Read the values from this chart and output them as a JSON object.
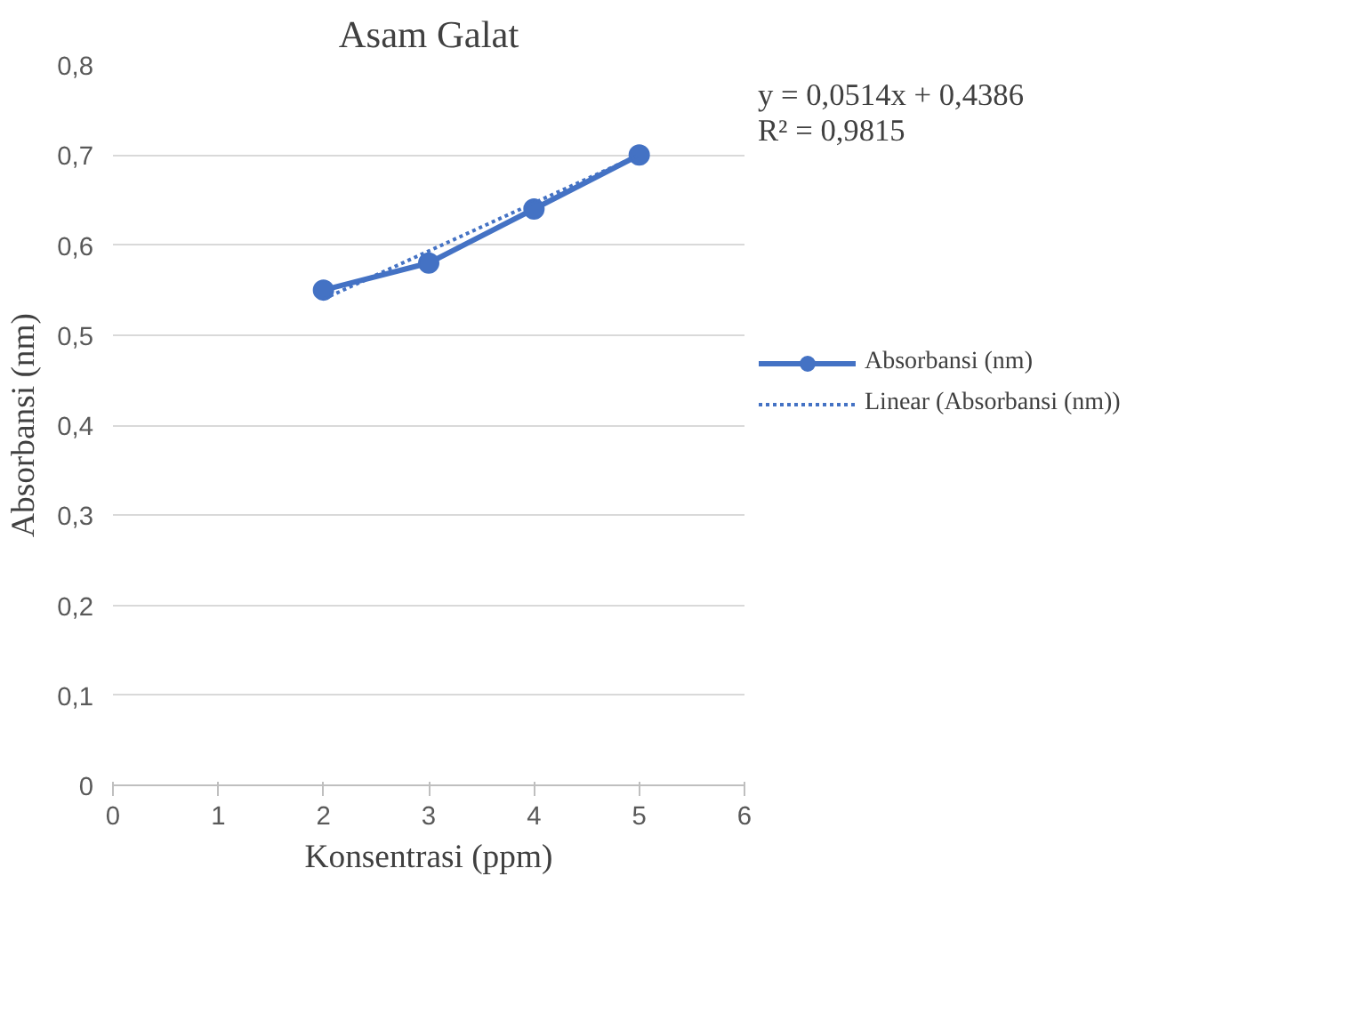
{
  "chart_data": {
    "type": "line",
    "title": "Asam Galat",
    "xlabel": "Konsentrasi (ppm)",
    "ylabel": "Absorbansi (nm)",
    "x": [
      2,
      3,
      4,
      5
    ],
    "series": [
      {
        "name": "Absorbansi (nm)",
        "color": "#4472c4",
        "values": [
          0.55,
          0.58,
          0.64,
          0.7
        ],
        "marker": "circle",
        "line_style": "solid"
      },
      {
        "name": "Linear (Absorbansi (nm))",
        "color": "#4472c4",
        "type": "line",
        "x": [
          2,
          5
        ],
        "values": [
          0.54,
          0.7
        ],
        "marker": "none",
        "line_style": "dotted"
      }
    ],
    "xlim": [
      0,
      6
    ],
    "xticks": [
      0,
      1,
      2,
      3,
      4,
      5,
      6
    ],
    "ylim": [
      0,
      0.8
    ],
    "yticks": [
      {
        "value": 0,
        "label": "0"
      },
      {
        "value": 0.1,
        "label": "0,1"
      },
      {
        "value": 0.2,
        "label": "0,2"
      },
      {
        "value": 0.3,
        "label": "0,3"
      },
      {
        "value": 0.4,
        "label": "0,4"
      },
      {
        "value": 0.5,
        "label": "0,5"
      },
      {
        "value": 0.6,
        "label": "0,6"
      },
      {
        "value": 0.7,
        "label": "0,7"
      },
      {
        "value": 0.8,
        "label": "0,8"
      }
    ],
    "annotations": [
      "y = 0,0514x + 0,4386",
      "R² = 0,9815"
    ],
    "grid": "y",
    "legend": "right"
  }
}
